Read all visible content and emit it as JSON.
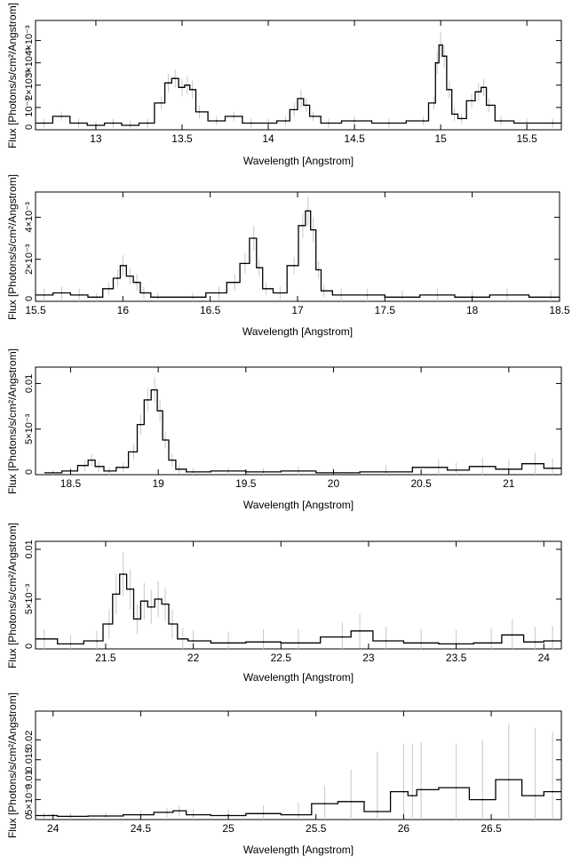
{
  "colors": {
    "line": "#000000",
    "error": "#c8c8c8",
    "axis": "#000000"
  },
  "chart_data": [
    {
      "type": "line",
      "xlabel": "Wavelength [Angstrom]",
      "ylabel": "Flux [Photons/s/cm²/Angstrom]",
      "xlim": [
        12.65,
        15.7
      ],
      "ylim": [
        0,
        0.0049
      ],
      "xticks": [
        {
          "v": 13,
          "label": "13"
        },
        {
          "v": 13.5,
          "label": "13.5"
        },
        {
          "v": 14,
          "label": "14"
        },
        {
          "v": 14.5,
          "label": "14.5"
        },
        {
          "v": 15,
          "label": "15"
        },
        {
          "v": 15.5,
          "label": "15.5"
        }
      ],
      "yticks": [
        {
          "v": 0,
          "label": "0"
        },
        {
          "v": 0.001,
          "label": "10⁻³"
        },
        {
          "v": 0.002,
          "label": "2×10⁻³"
        },
        {
          "v": 0.003,
          "label": "3×10⁻³"
        },
        {
          "v": 0.004,
          "label": "4×10⁻³"
        }
      ],
      "series": [
        {
          "x": [
            12.7,
            12.8,
            12.9,
            13.0,
            13.1,
            13.2,
            13.3,
            13.38,
            13.42,
            13.46,
            13.5,
            13.53,
            13.56,
            13.6,
            13.7,
            13.8,
            13.9,
            14.0,
            14.1,
            14.15,
            14.19,
            14.22,
            14.26,
            14.35,
            14.5,
            14.7,
            14.9,
            14.96,
            14.98,
            15.0,
            15.02,
            15.05,
            15.08,
            15.12,
            15.18,
            15.22,
            15.25,
            15.28,
            15.35,
            15.5,
            15.65
          ],
          "y": [
            0.0003,
            0.0006,
            0.0003,
            0.0002,
            0.0003,
            0.0002,
            0.0003,
            0.0012,
            0.0021,
            0.0023,
            0.0019,
            0.002,
            0.0018,
            0.0008,
            0.0004,
            0.0006,
            0.0003,
            0.0003,
            0.0004,
            0.0009,
            0.0014,
            0.0011,
            0.0006,
            0.0003,
            0.0004,
            0.0003,
            0.0004,
            0.0012,
            0.003,
            0.0038,
            0.0033,
            0.0018,
            0.0007,
            0.0005,
            0.0013,
            0.0017,
            0.0019,
            0.0011,
            0.0004,
            0.0003,
            0.0003
          ],
          "err": [
            0.0002,
            0.0002,
            0.0002,
            0.0002,
            0.0002,
            0.0002,
            0.0002,
            0.0003,
            0.0004,
            0.0004,
            0.0004,
            0.0004,
            0.0004,
            0.0003,
            0.0002,
            0.0002,
            0.0002,
            0.0002,
            0.0002,
            0.0003,
            0.0004,
            0.0003,
            0.0002,
            0.0002,
            0.0002,
            0.0002,
            0.0002,
            0.0003,
            0.0005,
            0.0006,
            0.0005,
            0.0004,
            0.0003,
            0.0002,
            0.0003,
            0.0004,
            0.0004,
            0.0003,
            0.0002,
            0.0002,
            0.0002
          ]
        }
      ]
    },
    {
      "type": "line",
      "xlabel": "Wavelength [Angstrom]",
      "ylabel": "Flux [Photons/s/cm²/Angstrom]",
      "xlim": [
        15.5,
        18.5
      ],
      "ylim": [
        0,
        0.0052
      ],
      "xticks": [
        {
          "v": 15.5,
          "label": "15.5"
        },
        {
          "v": 16,
          "label": "16"
        },
        {
          "v": 16.5,
          "label": "16.5"
        },
        {
          "v": 17,
          "label": "17"
        },
        {
          "v": 17.5,
          "label": "17.5"
        },
        {
          "v": 18,
          "label": "18"
        },
        {
          "v": 18.5,
          "label": "18.5"
        }
      ],
      "yticks": [
        {
          "v": 0,
          "label": "0"
        },
        {
          "v": 0.002,
          "label": "2×10⁻³"
        },
        {
          "v": 0.004,
          "label": "4×10⁻³"
        }
      ],
      "series": [
        {
          "x": [
            15.55,
            15.65,
            15.75,
            15.85,
            15.92,
            15.97,
            16.0,
            16.04,
            16.08,
            16.12,
            16.2,
            16.4,
            16.55,
            16.64,
            16.7,
            16.75,
            16.78,
            16.82,
            16.9,
            16.98,
            17.03,
            17.06,
            17.09,
            17.12,
            17.15,
            17.25,
            17.4,
            17.6,
            17.8,
            18.0,
            18.2,
            18.45
          ],
          "y": [
            0.0003,
            0.0004,
            0.0003,
            0.0002,
            0.0006,
            0.0011,
            0.0017,
            0.0012,
            0.0009,
            0.0004,
            0.0002,
            0.0002,
            0.0004,
            0.0009,
            0.0018,
            0.003,
            0.0016,
            0.0006,
            0.0004,
            0.0017,
            0.0036,
            0.0043,
            0.0034,
            0.0015,
            0.0005,
            0.0003,
            0.0003,
            0.0002,
            0.0003,
            0.0002,
            0.0003,
            0.0002
          ],
          "err": [
            0.0003,
            0.0003,
            0.0003,
            0.0002,
            0.0003,
            0.0004,
            0.0005,
            0.0004,
            0.0004,
            0.0003,
            0.0002,
            0.0002,
            0.0003,
            0.0004,
            0.0005,
            0.0006,
            0.0004,
            0.0003,
            0.0003,
            0.0004,
            0.0006,
            0.0007,
            0.0006,
            0.0004,
            0.0003,
            0.0003,
            0.0003,
            0.0003,
            0.0003,
            0.0003,
            0.0003,
            0.0003
          ]
        }
      ]
    },
    {
      "type": "line",
      "xlabel": "Wavelength [Angstrom]",
      "ylabel": "Flux [Photons/s/cm²/Angstrom]",
      "xlim": [
        18.3,
        21.3
      ],
      "ylim": [
        0,
        0.0118
      ],
      "xticks": [
        {
          "v": 18.5,
          "label": "18.5"
        },
        {
          "v": 19,
          "label": "19"
        },
        {
          "v": 19.5,
          "label": "19.5"
        },
        {
          "v": 20,
          "label": "20"
        },
        {
          "v": 20.5,
          "label": "20.5"
        },
        {
          "v": 21,
          "label": "21"
        }
      ],
      "yticks": [
        {
          "v": 0,
          "label": "0"
        },
        {
          "v": 0.005,
          "label": "5×10⁻³"
        },
        {
          "v": 0.01,
          "label": "0.01"
        }
      ],
      "series": [
        {
          "x": [
            18.4,
            18.5,
            18.58,
            18.62,
            18.66,
            18.72,
            18.8,
            18.86,
            18.9,
            18.94,
            18.98,
            19.01,
            19.04,
            19.08,
            19.12,
            19.2,
            19.4,
            19.6,
            19.8,
            20.0,
            20.3,
            20.6,
            20.7,
            20.85,
            21.0,
            21.15,
            21.25
          ],
          "y": [
            0.0002,
            0.0004,
            0.001,
            0.0016,
            0.0009,
            0.0004,
            0.0008,
            0.0025,
            0.0055,
            0.0082,
            0.0093,
            0.007,
            0.0038,
            0.0016,
            0.0006,
            0.0003,
            0.0004,
            0.0003,
            0.0004,
            0.0002,
            0.0003,
            0.0008,
            0.0005,
            0.0009,
            0.0006,
            0.0012,
            0.0007
          ],
          "err": [
            0.0003,
            0.0004,
            0.0006,
            0.0007,
            0.0006,
            0.0004,
            0.0005,
            0.0008,
            0.0011,
            0.0013,
            0.0014,
            0.0012,
            0.0009,
            0.0007,
            0.0005,
            0.0004,
            0.0004,
            0.0004,
            0.0005,
            0.0005,
            0.0007,
            0.0009,
            0.0008,
            0.001,
            0.001,
            0.0012,
            0.0011
          ]
        }
      ]
    },
    {
      "type": "line",
      "xlabel": "Wavelength [Angstrom]",
      "ylabel": "Flux [Photons/s/cm²/Angstrom]",
      "xlim": [
        21.1,
        24.1
      ],
      "ylim": [
        0,
        0.0108
      ],
      "xticks": [
        {
          "v": 21.5,
          "label": "21.5"
        },
        {
          "v": 22,
          "label": "22"
        },
        {
          "v": 22.5,
          "label": "22.5"
        },
        {
          "v": 23,
          "label": "23"
        },
        {
          "v": 23.5,
          "label": "23.5"
        },
        {
          "v": 24,
          "label": "24"
        }
      ],
      "yticks": [
        {
          "v": 0,
          "label": "0"
        },
        {
          "v": 0.005,
          "label": "5×10⁻³"
        },
        {
          "v": 0.01,
          "label": "0.01"
        }
      ],
      "series": [
        {
          "x": [
            21.15,
            21.3,
            21.45,
            21.52,
            21.56,
            21.6,
            21.64,
            21.68,
            21.72,
            21.76,
            21.8,
            21.84,
            21.88,
            21.94,
            22.0,
            22.2,
            22.4,
            22.6,
            22.85,
            22.95,
            23.1,
            23.3,
            23.5,
            23.7,
            23.82,
            23.95,
            24.05
          ],
          "y": [
            0.001,
            0.0005,
            0.0008,
            0.0025,
            0.0055,
            0.0075,
            0.006,
            0.003,
            0.0048,
            0.0042,
            0.005,
            0.0045,
            0.0025,
            0.001,
            0.0008,
            0.0006,
            0.0007,
            0.0006,
            0.0012,
            0.0018,
            0.0008,
            0.0006,
            0.0005,
            0.0006,
            0.0014,
            0.0007,
            0.0008
          ],
          "err": [
            0.001,
            0.0009,
            0.001,
            0.0015,
            0.002,
            0.0022,
            0.002,
            0.0015,
            0.0018,
            0.0017,
            0.0018,
            0.0017,
            0.0015,
            0.0011,
            0.0011,
            0.0011,
            0.0013,
            0.0014,
            0.0015,
            0.0017,
            0.0014,
            0.0014,
            0.0014,
            0.0015,
            0.0016,
            0.0015,
            0.0015
          ]
        }
      ]
    },
    {
      "type": "line",
      "xlabel": "Wavelength [Angstrom]",
      "ylabel": "Flux [Photons/s/cm²/Angstrom]",
      "xlim": [
        23.9,
        26.9
      ],
      "ylim": [
        0,
        0.0272
      ],
      "xticks": [
        {
          "v": 24,
          "label": "24"
        },
        {
          "v": 24.5,
          "label": "24.5"
        },
        {
          "v": 25,
          "label": "25"
        },
        {
          "v": 25.5,
          "label": "25.5"
        },
        {
          "v": 26,
          "label": "26"
        },
        {
          "v": 26.5,
          "label": "26.5"
        }
      ],
      "yticks": [
        {
          "v": 0,
          "label": "0"
        },
        {
          "v": 0.005,
          "label": "5×10⁻³"
        },
        {
          "v": 0.01,
          "label": "0.01"
        },
        {
          "v": 0.015,
          "label": "0.015"
        },
        {
          "v": 0.02,
          "label": "0.02"
        }
      ],
      "series": [
        {
          "x": [
            23.95,
            24.1,
            24.3,
            24.5,
            24.65,
            24.72,
            24.8,
            25.0,
            25.2,
            25.4,
            25.55,
            25.7,
            25.85,
            26.0,
            26.05,
            26.1,
            26.3,
            26.45,
            26.6,
            26.75,
            26.85
          ],
          "y": [
            0.001,
            0.0008,
            0.0009,
            0.0012,
            0.0018,
            0.0022,
            0.0012,
            0.001,
            0.0015,
            0.0012,
            0.004,
            0.0045,
            0.002,
            0.007,
            0.006,
            0.0075,
            0.008,
            0.005,
            0.01,
            0.006,
            0.007
          ],
          "err": [
            0.0008,
            0.0008,
            0.0009,
            0.001,
            0.0012,
            0.0013,
            0.0013,
            0.0015,
            0.002,
            0.003,
            0.0045,
            0.008,
            0.015,
            0.012,
            0.013,
            0.012,
            0.011,
            0.015,
            0.014,
            0.017,
            0.015
          ]
        }
      ]
    }
  ]
}
